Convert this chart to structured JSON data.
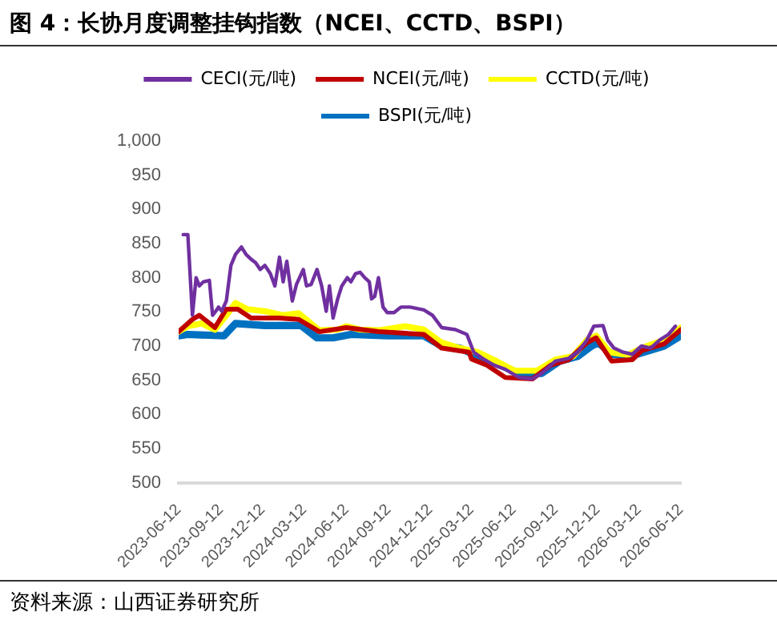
{
  "chart_data": {
    "type": "line",
    "title": "图 4：长协月度调整挂钩指数（NCEI、CCTD、BSPI）",
    "annotations": [
      "资料来源：山西证券研究所"
    ],
    "legend": "top",
    "grid": false,
    "marker": "none",
    "line_style": "solid",
    "xlim": [
      "2023-06-12",
      "2026-06-12"
    ],
    "xticks": [
      "2023-06-12",
      "2023-09-12",
      "2023-12-12",
      "2024-03-12",
      "2024-06-12",
      "2024-09-12",
      "2024-12-12",
      "2025-03-12",
      "2025-06-12",
      "2025-09-12",
      "2025-12-12",
      "2026-03-12",
      "2026-06-12"
    ],
    "ylim": [
      500,
      1000
    ],
    "yticks": [
      500,
      550,
      600,
      650,
      700,
      750,
      800,
      850,
      900,
      950,
      {
        "value": 1000,
        "label": "1,000"
      }
    ],
    "series": [
      {
        "name": "CECI(元/吨)",
        "color": "#7030a0",
        "x": [
          "2023-06-22",
          "2023-07-02",
          "2023-07-12",
          "2023-07-20",
          "2023-07-27",
          "2023-08-05",
          "2023-08-18",
          "2023-08-25",
          "2023-09-01",
          "2023-09-07",
          "2023-09-14",
          "2023-09-24",
          "2023-10-04",
          "2023-10-14",
          "2023-10-27",
          "2023-11-06",
          "2023-11-17",
          "2023-11-27",
          "2023-12-07",
          "2023-12-17",
          "2023-12-29",
          "2024-01-08",
          "2024-01-18",
          "2024-01-26",
          "2024-02-03",
          "2024-02-15",
          "2024-02-24",
          "2024-03-10",
          "2024-03-17",
          "2024-03-27",
          "2024-04-09",
          "2024-04-19",
          "2024-04-29",
          "2024-05-06",
          "2024-05-14",
          "2024-05-24",
          "2024-06-02",
          "2024-06-14",
          "2024-06-22",
          "2024-07-02",
          "2024-07-12",
          "2024-07-22",
          "2024-08-01",
          "2024-08-06",
          "2024-08-13",
          "2024-08-21",
          "2024-08-31",
          "2024-09-09",
          "2024-09-24",
          "2024-10-09",
          "2024-10-29",
          "2024-11-28",
          "2024-12-17",
          "2025-01-06",
          "2025-02-05",
          "2025-03-02",
          "2025-03-17",
          "2025-04-05",
          "2025-04-30",
          "2025-05-25",
          "2025-06-24",
          "2025-07-23",
          "2025-08-12",
          "2025-09-11",
          "2025-10-10",
          "2025-10-30",
          "2025-11-19",
          "2025-12-04",
          "2025-12-24",
          "2026-01-03",
          "2026-01-17",
          "2026-02-06",
          "2026-02-26",
          "2026-03-18",
          "2026-04-07",
          "2026-04-27",
          "2026-05-16",
          "2026-05-31"
        ],
        "values": [
          863,
          863,
          745,
          800,
          788,
          794,
          796,
          745,
          751,
          757,
          751,
          766,
          818,
          834,
          845,
          834,
          827,
          822,
          812,
          818,
          806,
          788,
          830,
          794,
          824,
          766,
          790,
          812,
          788,
          790,
          812,
          788,
          751,
          788,
          741,
          769,
          788,
          800,
          794,
          806,
          808,
          800,
          794,
          769,
          773,
          800,
          757,
          749,
          749,
          757,
          757,
          753,
          745,
          727,
          724,
          717,
          691,
          682,
          672,
          666,
          654,
          652,
          660,
          678,
          682,
          691,
          709,
          729,
          730,
          709,
          697,
          691,
          688,
          700,
          697,
          709,
          717,
          729
        ]
      },
      {
        "name": "NCEI(元/吨)",
        "color": "#c00000",
        "x": [
          "2023-06-12",
          "2023-07-12",
          "2023-07-27",
          "2023-08-30",
          "2023-09-24",
          "2023-10-19",
          "2023-11-17",
          "2024-01-16",
          "2024-02-29",
          "2024-04-14",
          "2024-06-12",
          "2024-08-21",
          "2024-11-28",
          "2025-01-06",
          "2025-03-07",
          "2025-03-12",
          "2025-04-15",
          "2025-05-25",
          "2025-07-23",
          "2025-09-01",
          "2025-10-10",
          "2025-11-19",
          "2025-12-09",
          "2026-01-12",
          "2026-02-26",
          "2026-03-18",
          "2026-05-06",
          "2026-06-12"
        ],
        "values": [
          721,
          739,
          745,
          727,
          754,
          754,
          741,
          741,
          739,
          721,
          727,
          721,
          717,
          697,
          691,
          681,
          672,
          654,
          652,
          672,
          680,
          705,
          712,
          678,
          680,
          693,
          703,
          724
        ]
      },
      {
        "name": "CCTD(元/吨)",
        "color": "#ffff00",
        "x": [
          "2023-06-12",
          "2023-07-02",
          "2023-08-01",
          "2023-08-30",
          "2023-09-24",
          "2023-10-14",
          "2023-11-08",
          "2023-12-17",
          "2024-01-26",
          "2024-02-29",
          "2024-04-14",
          "2024-05-24",
          "2024-06-12",
          "2024-07-12",
          "2024-08-21",
          "2024-10-19",
          "2024-11-28",
          "2025-01-06",
          "2025-02-15",
          "2025-03-26",
          "2025-05-05",
          "2025-06-14",
          "2025-08-02",
          "2025-09-11",
          "2025-10-20",
          "2025-11-19",
          "2025-12-09",
          "2026-01-08",
          "2026-02-16",
          "2026-03-18",
          "2026-05-06",
          "2026-06-12"
        ],
        "values": [
          721,
          729,
          733,
          724,
          745,
          763,
          754,
          751,
          745,
          748,
          723,
          724,
          729,
          724,
          723,
          729,
          724,
          705,
          697,
          691,
          678,
          664,
          664,
          680,
          685,
          709,
          715,
          691,
          687,
          697,
          709,
          727
        ]
      },
      {
        "name": "BSPI(元/吨)",
        "color": "#0070c0",
        "x": [
          "2023-06-12",
          "2023-07-02",
          "2023-09-19",
          "2023-10-14",
          "2023-12-17",
          "2024-03-05",
          "2024-04-09",
          "2024-05-14",
          "2024-06-22",
          "2024-09-09",
          "2024-11-28",
          "2025-01-06",
          "2025-02-15",
          "2025-03-26",
          "2025-05-25",
          "2025-06-24",
          "2025-08-12",
          "2025-09-21",
          "2025-10-30",
          "2025-11-29",
          "2025-12-14",
          "2026-01-12",
          "2026-02-21",
          "2026-05-06",
          "2026-06-12"
        ],
        "values": [
          715,
          717,
          715,
          733,
          730,
          730,
          712,
          712,
          717,
          715,
          715,
          700,
          697,
          685,
          669,
          660,
          660,
          678,
          685,
          700,
          705,
          688,
          685,
          700,
          715
        ]
      }
    ]
  }
}
